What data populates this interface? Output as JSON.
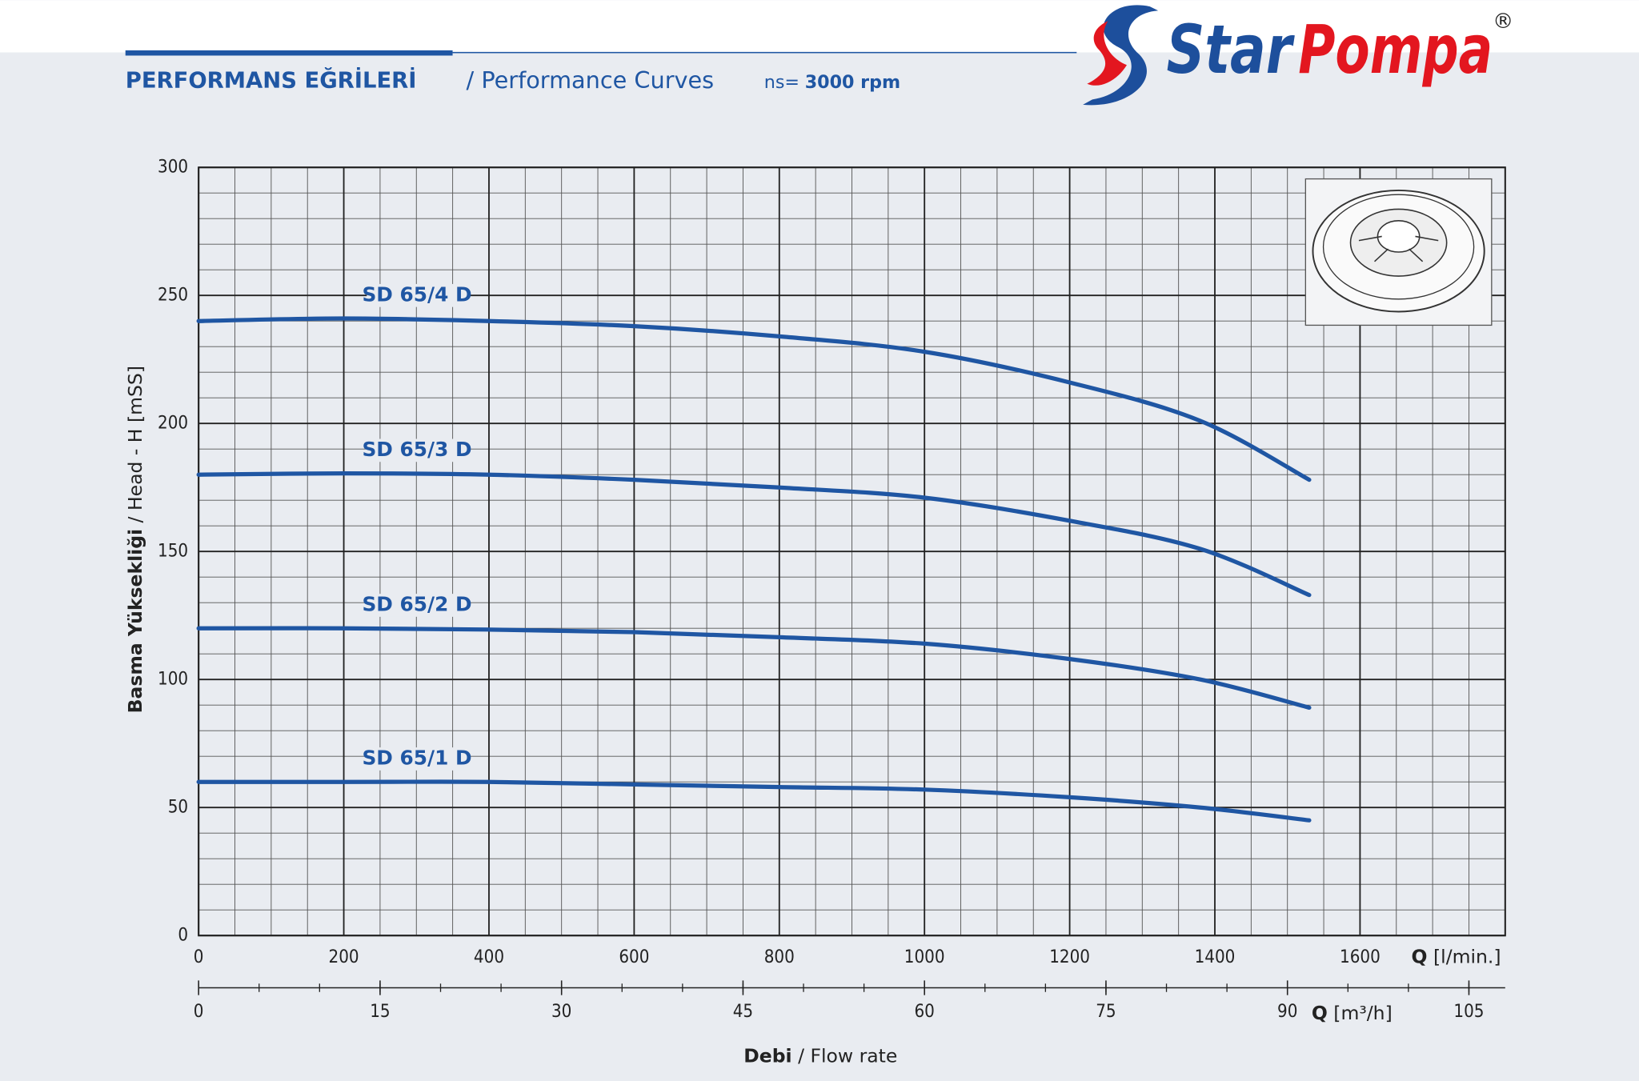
{
  "logo": {
    "name1": "Star",
    "name2": "Pompa",
    "mark": "®"
  },
  "chart_data": {
    "type": "line",
    "title": "PERFORMANS EĞRİLERİ",
    "subtitle": "/ Performance Curves",
    "speed_label": "ns=",
    "speed": "3000 rpm",
    "ylabel": [
      "Basma Yüksekliği",
      "/ Head - H [mSS]"
    ],
    "xlabel": [
      "Q",
      "[l/min.]"
    ],
    "x2label": [
      "Q",
      "[m³/h]"
    ],
    "footer_label": [
      "Debi",
      "/ Flow rate"
    ],
    "x": [
      0,
      200,
      400,
      600,
      800,
      1000,
      1200,
      1380,
      1530
    ],
    "series": [
      {
        "name": "SD 65/4 D",
        "color": "#1f56a3",
        "values": [
          240,
          241,
          240,
          238,
          234,
          228,
          216,
          201,
          178
        ]
      },
      {
        "name": "SD 65/3 D",
        "color": "#1f56a3",
        "values": [
          180,
          180.5,
          180,
          178,
          175,
          171,
          162,
          151,
          133
        ]
      },
      {
        "name": "SD 65/2 D",
        "color": "#1f56a3",
        "values": [
          120,
          120,
          119.5,
          118.5,
          116.5,
          114,
          108,
          100,
          89
        ]
      },
      {
        "name": "SD 65/1 D",
        "color": "#1f56a3",
        "values": [
          60,
          60,
          60,
          59,
          58,
          57,
          54,
          50,
          45
        ]
      }
    ],
    "xlim": [
      0,
      1800
    ],
    "xticks": [
      0,
      200,
      400,
      600,
      800,
      1000,
      1200,
      1400,
      1600
    ],
    "ylim": [
      0,
      300
    ],
    "yticks": [
      0,
      50,
      100,
      150,
      200,
      250,
      300
    ],
    "x2lim": [
      0,
      108
    ],
    "x2ticks": [
      0,
      15,
      30,
      45,
      60,
      75,
      90,
      105
    ],
    "x2minor": 5,
    "grid": true,
    "minor_grid": {
      "x": 50,
      "y": 10
    }
  }
}
